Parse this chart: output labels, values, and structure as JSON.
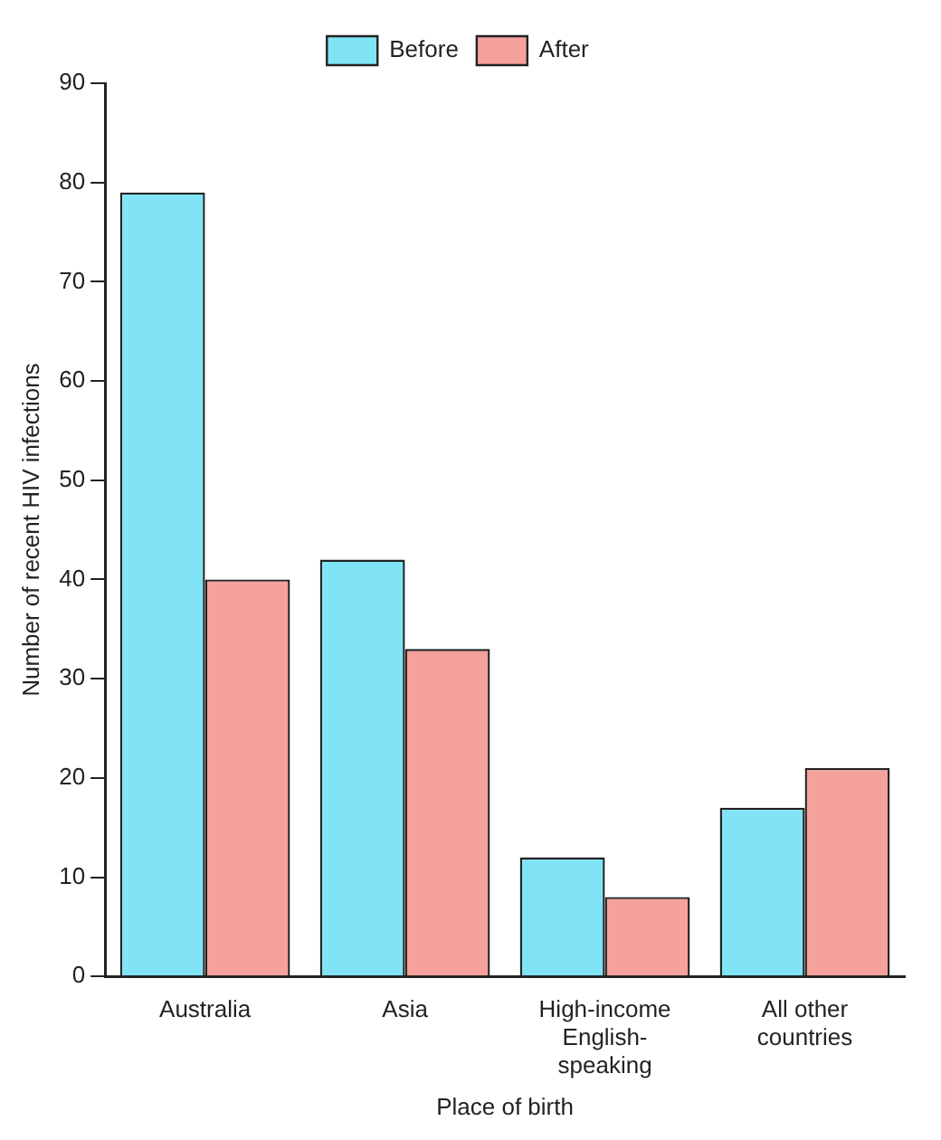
{
  "chart_data": {
    "type": "bar",
    "xlabel": "Place of birth",
    "ylabel": "Number of recent HIV infections",
    "categories": [
      "Australia",
      "Asia",
      "High-income English-speaking",
      "All other countries"
    ],
    "series": [
      {
        "name": "Before",
        "color": "#80e4f6",
        "values": [
          79,
          42,
          12,
          17
        ]
      },
      {
        "name": "After",
        "color": "#f5a19c",
        "values": [
          40,
          33,
          8,
          21
        ]
      }
    ],
    "ylim": [
      0,
      90
    ],
    "yticks": [
      0,
      10,
      20,
      30,
      40,
      50,
      60,
      70,
      80,
      90
    ],
    "grid": false,
    "legend": "top"
  }
}
